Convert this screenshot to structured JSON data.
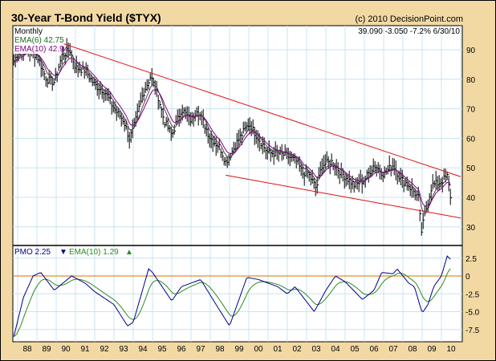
{
  "header": {
    "title": "30-Year T-Bond Yield ($TYX)",
    "copyright": "(c) 2010 DecisionPoint.com"
  },
  "legend": {
    "period": "Monthly",
    "ema6": "EMA(6) 42.75",
    "ema10": "EMA(10) 42.94",
    "quote": "39.090  -3.050  -7.2%  6/30/10",
    "pmo": "PMO  2.25",
    "pmo_arrow": "▼",
    "pmo_ema": "EMA(10)  1.29",
    "pmo_ema_arrow": "▲"
  },
  "colors": {
    "bg": "#F2D9A4",
    "grid": "#C8E4F0",
    "price": "#000000",
    "ema6": "#4A4A4A",
    "trend": "#E01010",
    "pmo": "#00008B",
    "pmo_ema": "#2E8B22",
    "zero": "#E07000"
  },
  "chart_data": [
    {
      "type": "bar",
      "name": "price",
      "title": "30-Year T-Bond Yield ($TYX)",
      "ylim": [
        24,
        97
      ],
      "yticks": [
        30,
        40,
        50,
        60,
        70,
        80,
        90
      ],
      "x_range": [
        1987.75,
        2011.0
      ],
      "anchors": [
        [
          1987.8,
          86
        ],
        [
          1988.0,
          89
        ],
        [
          1988.5,
          90
        ],
        [
          1989.0,
          88
        ],
        [
          1989.5,
          80
        ],
        [
          1989.9,
          79
        ],
        [
          1990.3,
          88
        ],
        [
          1990.7,
          90
        ],
        [
          1991.0,
          84
        ],
        [
          1991.5,
          83
        ],
        [
          1992.0,
          78
        ],
        [
          1992.5,
          76
        ],
        [
          1993.0,
          70
        ],
        [
          1993.5,
          66
        ],
        [
          1993.8,
          60
        ],
        [
          1994.0,
          63
        ],
        [
          1994.5,
          75
        ],
        [
          1994.9,
          81
        ],
        [
          1995.3,
          74
        ],
        [
          1995.6,
          66
        ],
        [
          1996.0,
          61
        ],
        [
          1996.5,
          70
        ],
        [
          1997.0,
          66
        ],
        [
          1997.3,
          70
        ],
        [
          1997.6,
          66
        ],
        [
          1998.0,
          60
        ],
        [
          1998.5,
          57
        ],
        [
          1998.8,
          52
        ],
        [
          1999.0,
          54
        ],
        [
          1999.5,
          60
        ],
        [
          2000.0,
          65
        ],
        [
          2000.5,
          60
        ],
        [
          2001.0,
          55
        ],
        [
          2001.5,
          55
        ],
        [
          2002.0,
          54
        ],
        [
          2002.5,
          52
        ],
        [
          2002.8,
          48
        ],
        [
          2003.0,
          49
        ],
        [
          2003.5,
          43
        ],
        [
          2003.8,
          51
        ],
        [
          2004.3,
          52
        ],
        [
          2004.7,
          49
        ],
        [
          2005.0,
          47
        ],
        [
          2005.5,
          44
        ],
        [
          2006.0,
          46
        ],
        [
          2006.5,
          51
        ],
        [
          2007.0,
          48
        ],
        [
          2007.5,
          51
        ],
        [
          2007.9,
          46
        ],
        [
          2008.3,
          44
        ],
        [
          2008.8,
          40
        ],
        [
          2008.95,
          28
        ],
        [
          2009.2,
          36
        ],
        [
          2009.5,
          44
        ],
        [
          2009.9,
          45
        ],
        [
          2010.3,
          47
        ],
        [
          2010.5,
          39.09
        ]
      ],
      "trendlines": [
        [
          [
            1990.4,
            92
          ],
          [
            2011.0,
            47
          ]
        ],
        [
          [
            1998.8,
            47.5
          ],
          [
            2011.0,
            33
          ]
        ]
      ]
    },
    {
      "type": "line",
      "name": "pmo",
      "ylim": [
        -9,
        4
      ],
      "yticks": [
        "2.5",
        "0",
        "-2.5",
        "-5.0",
        "-7.5"
      ],
      "ytick_values": [
        2.5,
        0,
        -2.5,
        -5,
        -7.5
      ],
      "anchors": [
        [
          1987.8,
          -8.5
        ],
        [
          1988.3,
          -3
        ],
        [
          1988.8,
          0
        ],
        [
          1989.2,
          0.5
        ],
        [
          1989.9,
          -2
        ],
        [
          1990.8,
          0
        ],
        [
          1991.5,
          -1
        ],
        [
          1992.0,
          -2.2
        ],
        [
          1993.0,
          -4
        ],
        [
          1993.7,
          -7
        ],
        [
          1994.0,
          -6.5
        ],
        [
          1994.8,
          1
        ],
        [
          1995.0,
          0.5
        ],
        [
          1996.0,
          -3.5
        ],
        [
          1996.5,
          -1.5
        ],
        [
          1997.5,
          -0.5
        ],
        [
          1998.3,
          -4
        ],
        [
          1999.0,
          -7
        ],
        [
          1999.9,
          -0.2
        ],
        [
          2000.5,
          -0.5
        ],
        [
          2001.5,
          -1.5
        ],
        [
          2002.0,
          -2.5
        ],
        [
          2002.4,
          -1.5
        ],
        [
          2003.4,
          -5
        ],
        [
          2004.0,
          -2
        ],
        [
          2004.5,
          0
        ],
        [
          2005.0,
          -0.8
        ],
        [
          2005.9,
          -3.3
        ],
        [
          2006.5,
          -2
        ],
        [
          2006.9,
          0.5
        ],
        [
          2007.5,
          0.3
        ],
        [
          2007.7,
          1
        ],
        [
          2008.3,
          -1
        ],
        [
          2008.6,
          -1.5
        ],
        [
          2009.0,
          -5.2
        ],
        [
          2009.3,
          -4
        ],
        [
          2009.6,
          -1.5
        ],
        [
          2010.0,
          0
        ],
        [
          2010.3,
          2.8
        ],
        [
          2010.5,
          2.25
        ]
      ]
    }
  ],
  "xticks": [
    "88",
    "89",
    "90",
    "91",
    "92",
    "93",
    "94",
    "95",
    "96",
    "97",
    "98",
    "99",
    "00",
    "01",
    "02",
    "03",
    "04",
    "05",
    "06",
    "07",
    "08",
    "09",
    "10"
  ]
}
